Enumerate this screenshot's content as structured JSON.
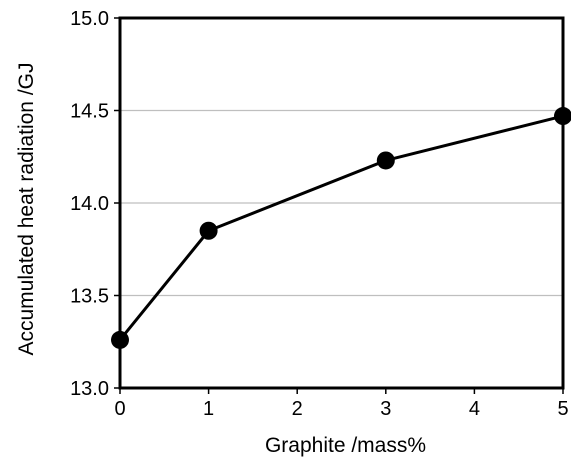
{
  "chart_data": {
    "type": "line",
    "title": "",
    "xlabel": "Graphite /mass%",
    "ylabel": "Accumulated heat radiation /GJ",
    "xlim": [
      0,
      5
    ],
    "ylim": [
      13.0,
      15.0
    ],
    "x_ticks": [
      "0",
      "1",
      "2",
      "3",
      "4",
      "5"
    ],
    "y_ticks": [
      "13.0",
      "13.5",
      "14.0",
      "14.5",
      "15.0"
    ],
    "grid": "horizontal",
    "legend": "none",
    "series": [
      {
        "x": [
          0,
          1,
          3,
          5
        ],
        "y": [
          13.26,
          13.85,
          14.23,
          14.47
        ]
      }
    ],
    "colors": {
      "line": "#000000",
      "marker": "#000000",
      "grid": "#bfbfbf"
    }
  }
}
